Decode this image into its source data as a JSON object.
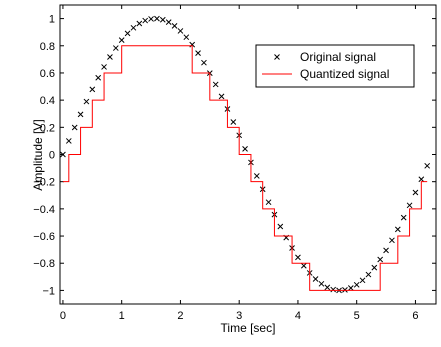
{
  "chart_data": {
    "type": "line",
    "title": "",
    "xlabel": "Time [sec]",
    "ylabel": "Amplitude [V]",
    "xlim": [
      -0.05,
      6.35
    ],
    "ylim": [
      -1.1,
      1.1
    ],
    "xticks": [
      0,
      1,
      2,
      3,
      4,
      5,
      6
    ],
    "yticks": [
      -1,
      -0.8,
      -0.6,
      -0.4,
      -0.2,
      0,
      0.2,
      0.4,
      0.6,
      0.8,
      1
    ],
    "grid": false,
    "legend_position": "top-right",
    "series": [
      {
        "name": "Original signal",
        "style": "markers",
        "marker": "x",
        "color": "#000000",
        "x": [
          0.0,
          0.1,
          0.2,
          0.3,
          0.4,
          0.5,
          0.6,
          0.7,
          0.8,
          0.9,
          1.0,
          1.1,
          1.2,
          1.3,
          1.4,
          1.5,
          1.6,
          1.7,
          1.8,
          1.9,
          2.0,
          2.1,
          2.2,
          2.3,
          2.4,
          2.5,
          2.6,
          2.7,
          2.8,
          2.9,
          3.0,
          3.1,
          3.2,
          3.3,
          3.4,
          3.5,
          3.6,
          3.7,
          3.8,
          3.9,
          4.0,
          4.1,
          4.2,
          4.3,
          4.4,
          4.5,
          4.6,
          4.7,
          4.8,
          4.9,
          5.0,
          5.1,
          5.2,
          5.3,
          5.4,
          5.5,
          5.6,
          5.7,
          5.8,
          5.9,
          6.0,
          6.1,
          6.2
        ],
        "y": [
          0.0,
          0.0998,
          0.1987,
          0.2955,
          0.3894,
          0.4794,
          0.5646,
          0.6442,
          0.7174,
          0.7833,
          0.8415,
          0.8912,
          0.932,
          0.9636,
          0.9854,
          0.9975,
          0.9996,
          0.9917,
          0.9738,
          0.9463,
          0.9093,
          0.8632,
          0.8085,
          0.7457,
          0.6755,
          0.5985,
          0.5155,
          0.4274,
          0.335,
          0.2392,
          0.1411,
          0.0416,
          -0.0584,
          -0.1577,
          -0.2555,
          -0.3508,
          -0.4425,
          -0.5298,
          -0.6119,
          -0.6878,
          -0.7568,
          -0.8183,
          -0.8716,
          -0.9162,
          -0.9516,
          -0.9775,
          -0.9937,
          -0.9999,
          -0.9962,
          -0.9825,
          -0.9589,
          -0.9258,
          -0.8835,
          -0.8323,
          -0.7728,
          -0.7055,
          -0.6313,
          -0.5507,
          -0.4646,
          -0.3739,
          -0.2794,
          -0.1822,
          -0.0831
        ]
      },
      {
        "name": "Quantized signal",
        "style": "line",
        "color": "#ff0000",
        "x": [
          0.0,
          0.1,
          0.2,
          0.3,
          0.4,
          0.5,
          0.6,
          0.7,
          0.8,
          0.9,
          1.0,
          1.1,
          1.2,
          1.3,
          1.4,
          1.5,
          1.6,
          1.7,
          1.8,
          1.9,
          2.0,
          2.1,
          2.2,
          2.3,
          2.4,
          2.5,
          2.6,
          2.7,
          2.8,
          2.9,
          3.0,
          3.1,
          3.2,
          3.3,
          3.4,
          3.5,
          3.6,
          3.7,
          3.8,
          3.9,
          4.0,
          4.1,
          4.2,
          4.3,
          4.4,
          4.5,
          4.6,
          4.7,
          4.8,
          4.9,
          5.0,
          5.1,
          5.2,
          5.3,
          5.4,
          5.5,
          5.6,
          5.7,
          5.8,
          5.9,
          6.0,
          6.1,
          6.2
        ],
        "y": [
          -0.2,
          0.0,
          0.0,
          0.2,
          0.2,
          0.4,
          0.4,
          0.6,
          0.6,
          0.6,
          0.8,
          0.8,
          0.8,
          0.8,
          0.8,
          0.8,
          0.8,
          0.8,
          0.8,
          0.8,
          0.8,
          0.8,
          0.6,
          0.6,
          0.6,
          0.4,
          0.4,
          0.4,
          0.2,
          0.2,
          0.0,
          0.0,
          -0.2,
          -0.2,
          -0.4,
          -0.4,
          -0.6,
          -0.6,
          -0.6,
          -0.8,
          -0.8,
          -0.8,
          -1.0,
          -1.0,
          -1.0,
          -1.0,
          -1.0,
          -1.0,
          -1.0,
          -1.0,
          -1.0,
          -1.0,
          -1.0,
          -1.0,
          -0.8,
          -0.8,
          -0.8,
          -0.6,
          -0.6,
          -0.4,
          -0.4,
          -0.2,
          -0.2
        ]
      }
    ]
  }
}
